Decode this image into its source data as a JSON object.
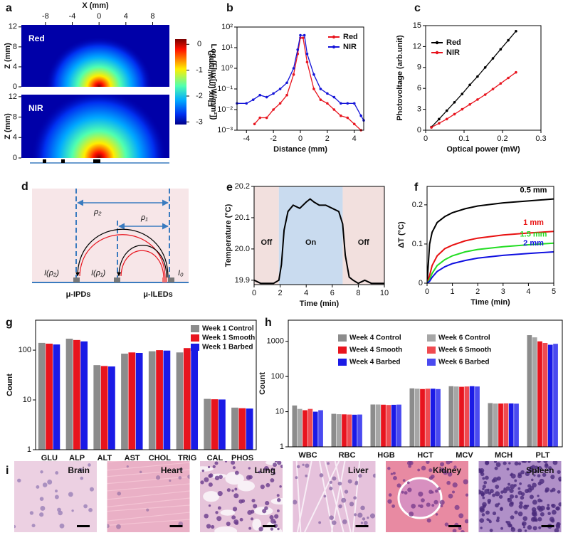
{
  "chart_data": [
    {
      "type": "heatmap",
      "panel": "a",
      "xlabel": "X (mm)",
      "ylabel": "Z (mm)",
      "xlim": [
        -11.6,
        10.5
      ],
      "xticks": [
        -8,
        -4,
        0,
        4,
        8
      ],
      "ylim": [
        0,
        12.4
      ],
      "yticks": [
        0,
        4,
        8,
        12
      ],
      "maps": [
        "Red",
        "NIR"
      ],
      "colorbar": {
        "label": "Log (Flux[mW/mm²])",
        "lim": [
          -3.1,
          0.2
        ],
        "ticks": [
          0,
          -1,
          -2,
          -3
        ]
      }
    },
    {
      "type": "line",
      "panel": "b",
      "xlabel": "Distance (mm)",
      "ylabel": "Flux (mW/mm²)",
      "xlim": [
        -4.7,
        4.7
      ],
      "xticks": [
        -4,
        -2,
        0,
        2,
        4
      ],
      "ylog": true,
      "ylim": [
        0.001,
        100
      ],
      "yticks": [
        {
          "value": 0.001,
          "label": "10⁻³"
        },
        {
          "value": 0.01,
          "label": "10⁻²"
        },
        {
          "value": 0.1,
          "label": "10⁻¹"
        },
        {
          "value": 1,
          "label": "10⁰"
        },
        {
          "value": 10,
          "label": "10¹"
        },
        {
          "value": 100,
          "label": "10²"
        }
      ],
      "legend": "upper right",
      "markers": true,
      "series": [
        {
          "name": "Red",
          "color": "#e8141e",
          "x": [
            -3.4,
            -3,
            -2.5,
            -2,
            -1.5,
            -1,
            -0.5,
            -0.2,
            0,
            0.2,
            0.5,
            1,
            1.5,
            2,
            2.5,
            3,
            3.5,
            4,
            4.5
          ],
          "values": [
            0.002,
            0.004,
            0.004,
            0.01,
            0.02,
            0.05,
            0.5,
            5,
            30,
            30,
            2,
            0.1,
            0.03,
            0.02,
            0.01,
            0.005,
            0.004,
            0.002,
            0.001
          ]
        },
        {
          "name": "NIR",
          "color": "#1414d8",
          "x": [
            -4.7,
            -4,
            -3.5,
            -3,
            -2.5,
            -2,
            -1.5,
            -1,
            -0.5,
            -0.2,
            0,
            0.3,
            0.5,
            1,
            1.5,
            2,
            2.5,
            3,
            3.5,
            4,
            4.5,
            4.7
          ],
          "values": [
            0.02,
            0.02,
            0.03,
            0.05,
            0.04,
            0.06,
            0.1,
            0.2,
            1,
            8,
            40,
            40,
            5,
            0.5,
            0.1,
            0.06,
            0.04,
            0.02,
            0.02,
            0.02,
            0.005,
            0.003
          ]
        }
      ]
    },
    {
      "type": "line",
      "panel": "c",
      "xlabel": "Optical power (mW)",
      "ylabel": "Photovoltage (arb.unit)",
      "xlim": [
        0,
        0.3
      ],
      "xticks": [
        0,
        0.1,
        0.2,
        0.3
      ],
      "ylim": [
        0,
        15
      ],
      "yticks": [
        0,
        3,
        6,
        9,
        12,
        15
      ],
      "legend": "upper left",
      "markers": true,
      "series": [
        {
          "name": "Red",
          "color": "#000000",
          "x": [
            0.015,
            0.035,
            0.055,
            0.075,
            0.095,
            0.115,
            0.135,
            0.155,
            0.175,
            0.195,
            0.215,
            0.235
          ],
          "values": [
            0.45,
            1.6,
            2.8,
            4.0,
            5.2,
            6.5,
            7.7,
            9.0,
            10.3,
            11.6,
            12.9,
            14.2
          ]
        },
        {
          "name": "NIR",
          "color": "#e8141e",
          "x": [
            0.015,
            0.035,
            0.055,
            0.075,
            0.095,
            0.115,
            0.135,
            0.155,
            0.175,
            0.195,
            0.215,
            0.235
          ],
          "values": [
            0.4,
            1.0,
            1.6,
            2.3,
            3.0,
            3.7,
            4.4,
            5.1,
            5.9,
            6.7,
            7.5,
            8.3
          ]
        }
      ]
    },
    {
      "type": "line",
      "panel": "e",
      "xlabel": "Time (min)",
      "ylabel": "Temperature (°C)",
      "xlim": [
        0,
        10
      ],
      "xticks": [
        0,
        2,
        4,
        6,
        8,
        10
      ],
      "ylim": [
        19.886,
        20.2
      ],
      "yticks": [
        19.9,
        {
          "value": 20,
          "label": "20.0"
        },
        20.1,
        20.2
      ],
      "regions": [
        {
          "label": "Off",
          "x": [
            0,
            1.9
          ],
          "color": "#f2e0de"
        },
        {
          "label": "On",
          "x": [
            1.9,
            6.8
          ],
          "color": "#c9dbef"
        },
        {
          "label": "Off",
          "x": [
            6.8,
            10
          ],
          "color": "#f2e0de"
        }
      ],
      "series": [
        {
          "color": "#000000",
          "x": [
            0,
            0.5,
            1,
            1.5,
            1.9,
            2.1,
            2.3,
            2.6,
            3,
            3.5,
            4,
            4.3,
            4.6,
            5,
            5.5,
            6,
            6.5,
            6.8,
            7,
            7.3,
            7.6,
            8,
            8.5,
            9,
            9.5,
            10
          ],
          "values": [
            19.9,
            19.89,
            19.89,
            19.89,
            19.9,
            19.95,
            20.06,
            20.12,
            20.14,
            20.13,
            20.15,
            20.16,
            20.15,
            20.14,
            20.14,
            20.13,
            20.12,
            20.08,
            19.98,
            19.91,
            19.9,
            19.89,
            19.9,
            19.89,
            19.89,
            19.89
          ]
        }
      ]
    },
    {
      "type": "line",
      "panel": "f",
      "xlabel": "Time (min)",
      "ylabel": "ΔT (°C)",
      "xlim": [
        0,
        5
      ],
      "xticks": [
        0,
        1,
        2,
        3,
        4,
        5
      ],
      "ylim": [
        0,
        0.247
      ],
      "yticks": [
        0,
        0.1,
        0.2
      ],
      "legend": "inline",
      "series": [
        {
          "name": "0.5 mm",
          "color": "#000000",
          "x": [
            0,
            0.1,
            0.2,
            0.4,
            0.7,
            1,
            1.5,
            2,
            3,
            4,
            5
          ],
          "values": [
            0,
            0.1,
            0.13,
            0.155,
            0.17,
            0.18,
            0.19,
            0.197,
            0.205,
            0.21,
            0.215
          ]
        },
        {
          "name": "1 mm",
          "color": "#e81010",
          "x": [
            0,
            0.1,
            0.2,
            0.4,
            0.7,
            1,
            1.5,
            2,
            3,
            4,
            5
          ],
          "values": [
            0,
            0.02,
            0.045,
            0.07,
            0.088,
            0.097,
            0.108,
            0.115,
            0.123,
            0.128,
            0.132
          ]
        },
        {
          "name": "1.5 mm",
          "color": "#22dd22",
          "x": [
            0,
            0.1,
            0.2,
            0.4,
            0.7,
            1,
            1.5,
            2,
            3,
            4,
            5
          ],
          "values": [
            0,
            0.01,
            0.025,
            0.045,
            0.06,
            0.07,
            0.08,
            0.086,
            0.093,
            0.098,
            0.102
          ]
        },
        {
          "name": "2 mm",
          "color": "#1010e0",
          "x": [
            0,
            0.1,
            0.2,
            0.4,
            0.7,
            1,
            1.5,
            2,
            3,
            4,
            5
          ],
          "values": [
            0,
            0.005,
            0.015,
            0.03,
            0.042,
            0.05,
            0.058,
            0.064,
            0.071,
            0.076,
            0.08
          ]
        }
      ]
    },
    {
      "type": "bar",
      "panel": "g",
      "ylabel": "Count",
      "ylog": true,
      "ylim": [
        1,
        400
      ],
      "yticks": [
        1,
        10,
        100
      ],
      "legend": "upper right",
      "legend_columns": 1,
      "categories": [
        "GLU",
        "ALP",
        "ALT",
        "AST",
        "CHOL",
        "TRIG",
        "CAL",
        "PHOS"
      ],
      "series": [
        {
          "name": "Week 1 Control",
          "color": "#8c8c8c",
          "values": [
            140,
            170,
            50,
            85,
            95,
            90,
            10.5,
            7
          ]
        },
        {
          "name": "Week 1 Smooth",
          "color": "#e8141e",
          "values": [
            135,
            160,
            48,
            90,
            100,
            110,
            10.3,
            6.8
          ]
        },
        {
          "name": "Week 1 Barbed",
          "color": "#1a1ae6",
          "values": [
            130,
            150,
            47,
            88,
            98,
            100,
            10.2,
            6.7
          ]
        }
      ]
    },
    {
      "type": "bar",
      "panel": "h",
      "ylabel": "Count",
      "ylog": true,
      "ylim": [
        1,
        4000
      ],
      "yticks": [
        1,
        10,
        100,
        1000
      ],
      "legend": "upper center",
      "legend_columns": 2,
      "categories": [
        "WBC",
        "RBC",
        "HGB",
        "HCT",
        "MCV",
        "MCH",
        "PLT"
      ],
      "series": [
        {
          "name": "Week 4 Control",
          "color": "#8c8c8c",
          "values": [
            15,
            8.7,
            16,
            46,
            53,
            17.5,
            1500
          ]
        },
        {
          "name": "Week 6 Control",
          "color": "#a6a6a6",
          "values": [
            12,
            8.5,
            16,
            45,
            52,
            17,
            1300
          ]
        },
        {
          "name": "Week 4 Smooth",
          "color": "#e8141e",
          "values": [
            11,
            8.4,
            15.8,
            44,
            51,
            17,
            1000
          ]
        },
        {
          "name": "Week 6 Smooth",
          "color": "#f04a50",
          "values": [
            12,
            8.3,
            15.5,
            45,
            52,
            17.2,
            900
          ]
        },
        {
          "name": "Week 4 Barbed",
          "color": "#1a1ae6",
          "values": [
            10,
            8.2,
            15.7,
            45,
            53,
            17.1,
            800
          ]
        },
        {
          "name": "Week 6 Barbed",
          "color": "#4a4af0",
          "values": [
            11,
            8.3,
            15.9,
            44,
            52,
            16.9,
            850
          ]
        }
      ]
    }
  ],
  "diagram": {
    "panel": "d",
    "rho2": "ρ₂",
    "rho1": "ρ₁",
    "i_rho2": "I(ρ₂)",
    "i_rho1": "I(ρ₁)",
    "i0": "I₀",
    "ipds": "μ-IPDs",
    "ileds": "μ-ILEDs"
  },
  "histology": {
    "panel": "i",
    "tissues": [
      "Brain",
      "Heart",
      "Lung",
      "Liver",
      "Kidney",
      "Spleen"
    ]
  }
}
